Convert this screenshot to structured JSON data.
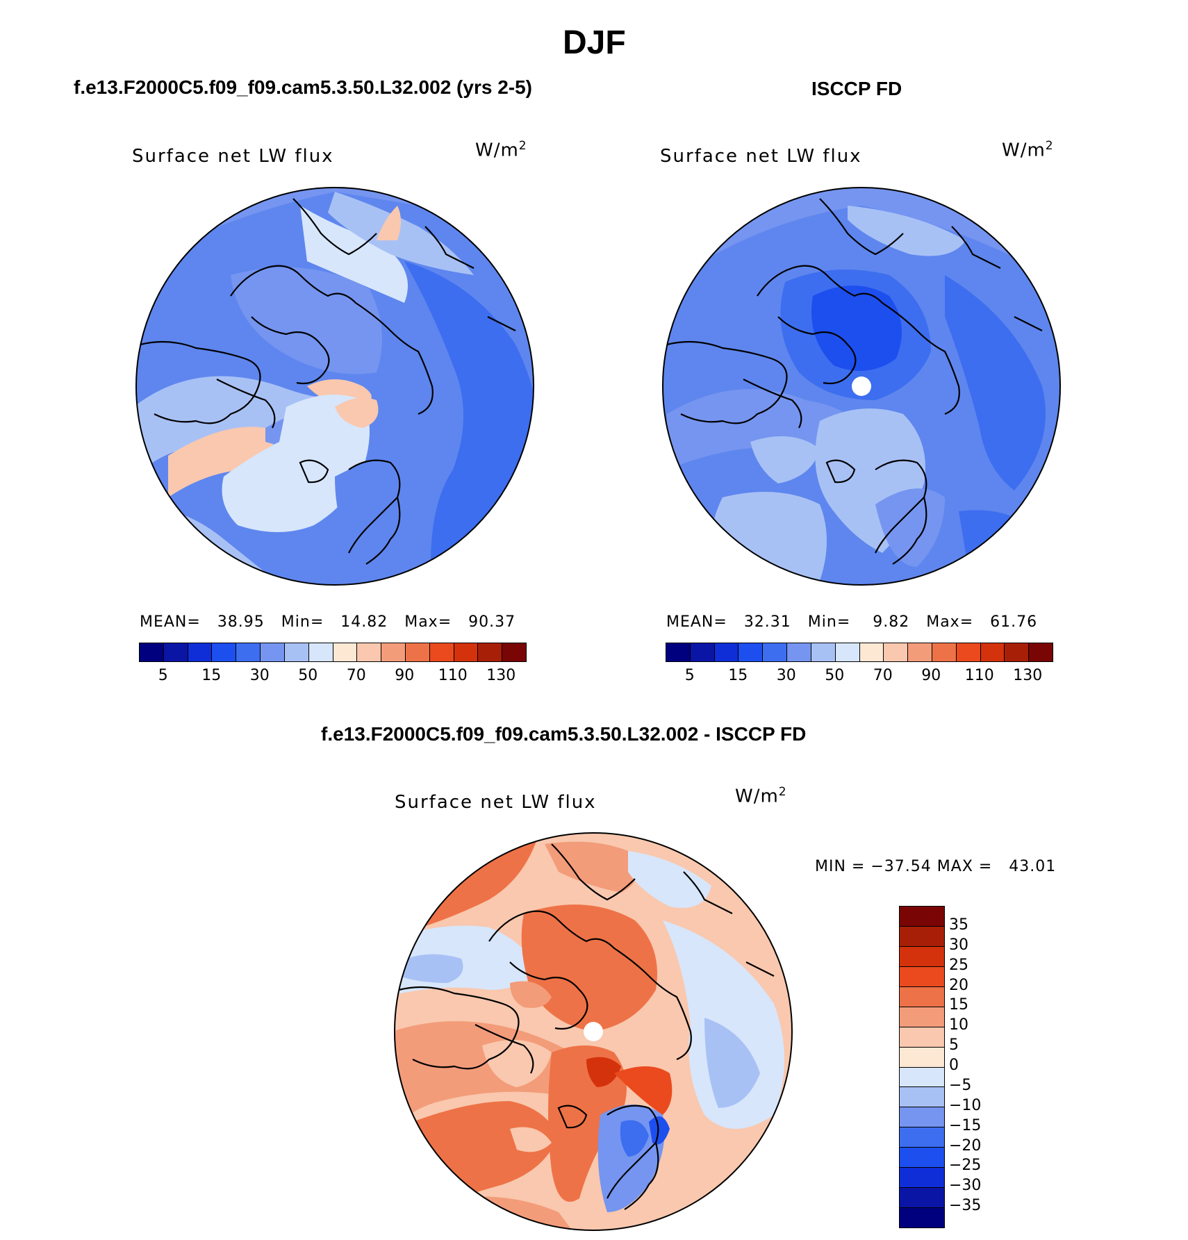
{
  "figure": {
    "season": "DJF",
    "panel_labels": {
      "left": "f.e13.F2000C5.f09_f09.cam5.3.50.L32.002 (yrs 2-5)",
      "right": "ISCCP FD",
      "bottom": "f.e13.F2000C5.f09_f09.cam5.3.50.L32.002 - ISCCP FD"
    },
    "variable_label": "Surface net LW flux",
    "units_base": "W/m",
    "units_exp": "2"
  },
  "panels": {
    "model": {
      "mean_label": "MEAN=",
      "mean_value": "38.95",
      "min_label": "Min=",
      "min_value": "14.82",
      "max_label": "Max=",
      "max_value": "90.37"
    },
    "obs": {
      "mean_label": "MEAN=",
      "mean_value": "32.31",
      "min_label": "Min=",
      "min_value": "9.82",
      "max_label": "Max=",
      "max_value": "61.76"
    },
    "diff": {
      "min_label": "MIN =",
      "min_value": "−37.54",
      "max_label": "MAX =",
      "max_value": "43.01"
    }
  },
  "colorbars": {
    "absolute": {
      "tick_labels": [
        "5",
        "15",
        "30",
        "50",
        "70",
        "90",
        "110",
        "130"
      ],
      "colors": [
        "#00007f",
        "#0a15a6",
        "#0f2ed8",
        "#1d4fef",
        "#3d6ef0",
        "#7595f0",
        "#a8c1f5",
        "#d7e6fb",
        "#fde8d4",
        "#f9c8ae",
        "#f39c7a",
        "#ee7247",
        "#ea4a1e",
        "#d4320c",
        "#a81f08",
        "#7a0505"
      ]
    },
    "difference": {
      "tick_labels": [
        "35",
        "30",
        "25",
        "20",
        "15",
        "10",
        "5",
        "0",
        "−5",
        "−10",
        "−15",
        "−20",
        "−25",
        "−30",
        "−35"
      ],
      "colors": [
        "#7a0505",
        "#a81f08",
        "#d4320c",
        "#ea4a1e",
        "#ee7247",
        "#f39c7a",
        "#f9c8ae",
        "#fde8d4",
        "#d7e6fb",
        "#a8c1f5",
        "#7595f0",
        "#3d6ef0",
        "#1d4fef",
        "#0f2ed8",
        "#0a15a6",
        "#00007f"
      ]
    }
  }
}
